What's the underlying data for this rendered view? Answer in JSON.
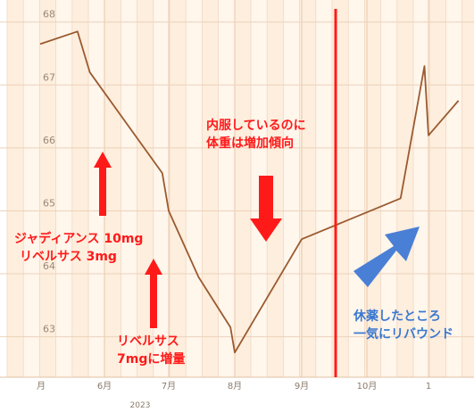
{
  "chart_data": {
    "type": "line",
    "series": [
      {
        "x": [
          "2023-05-01",
          "2023-05-19",
          "2023-05-25",
          "2023-06-28",
          "2023-07-01",
          "2023-07-15",
          "2023-07-30",
          "2023-08-01",
          "2023-09-01",
          "2023-10-18",
          "2023-10-30",
          "2023-11-01",
          "2023-11-15"
        ],
        "values": [
          67.65,
          67.85,
          67.2,
          65.6,
          65.0,
          63.95,
          63.15,
          62.75,
          64.55,
          65.2,
          67.3,
          66.2,
          66.75
        ]
      }
    ],
    "y_ticks": [
      "63",
      "64",
      "65",
      "66",
      "67",
      "68"
    ],
    "ylim": [
      62.4,
      68.35
    ],
    "x_ticks": [
      "月",
      "6月",
      "7月",
      "8月",
      "9月",
      "10月",
      "1"
    ],
    "x_year_label": "2023",
    "grid": true,
    "colors": {
      "line": "#9a5a30",
      "annotation_red": "#ff1a1a",
      "annotation_blue": "#3a78d0",
      "background_stripe_a": "#fdeedd",
      "background_stripe_b": "#fff6ec"
    }
  },
  "annotations": {
    "start": {
      "line1": "ジャディアンス 10mg",
      "line2": "リベルサス 3mg"
    },
    "increase": {
      "line1": "リベルサス",
      "line2": "7mgに増量"
    },
    "weight_gain": {
      "line1": "内服しているのに",
      "line2": "体重は増加傾向"
    },
    "rebound": {
      "line1": "休薬したところ",
      "line2": "一気にリバウンド"
    }
  }
}
